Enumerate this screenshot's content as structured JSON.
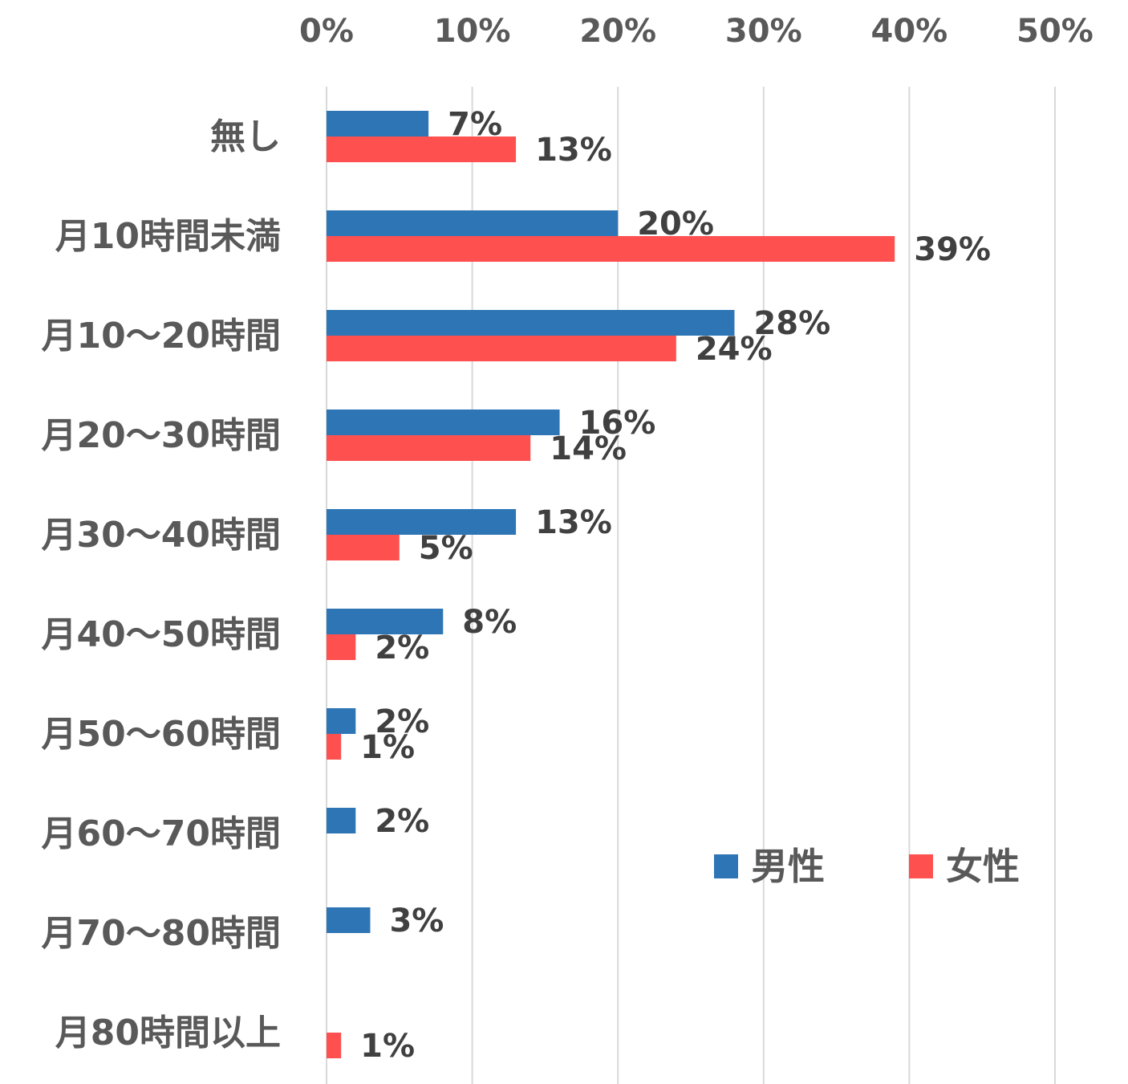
{
  "chart_data": {
    "type": "bar",
    "orientation": "horizontal",
    "categories": [
      "無し",
      "月10時間未満",
      "月10～20時間",
      "月20～30時間",
      "月30～40時間",
      "月40～50時間",
      "月50～60時間",
      "月60～70時間",
      "月70～80時間",
      "月80時間以上"
    ],
    "series": [
      {
        "name": "男性",
        "color": "#2e75b6",
        "values": [
          7,
          20,
          28,
          16,
          13,
          8,
          2,
          2,
          3,
          null
        ],
        "labels": [
          "7%",
          "20%",
          "28%",
          "16%",
          "13%",
          "8%",
          "2%",
          "2%",
          "3%",
          ""
        ]
      },
      {
        "name": "女性",
        "color": "#ff5050",
        "values": [
          13,
          39,
          24,
          14,
          5,
          2,
          1,
          null,
          null,
          1
        ],
        "labels": [
          "13%",
          "39%",
          "24%",
          "14%",
          "5%",
          "2%",
          "1%",
          "",
          "",
          "1%"
        ]
      }
    ],
    "xlim": [
      0,
      50
    ],
    "xticks": [
      "0%",
      "10%",
      "20%",
      "30%",
      "40%",
      "50%"
    ],
    "xaxis_position": "top",
    "grid": true,
    "legend_position": "bottom-right",
    "title": "",
    "xlabel": "",
    "ylabel": ""
  }
}
